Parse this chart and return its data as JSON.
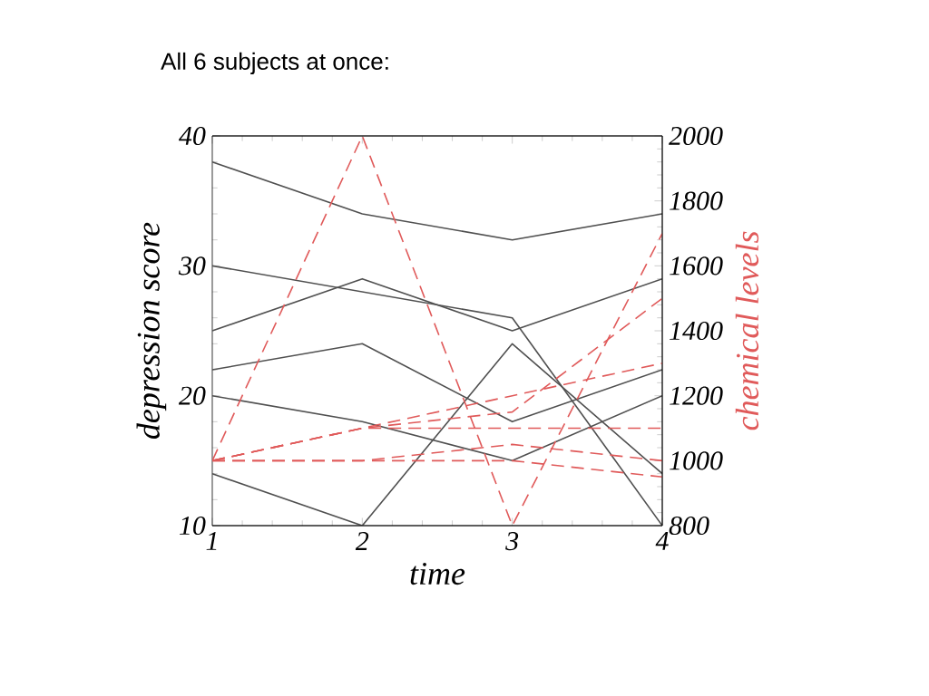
{
  "chart_data": {
    "type": "line",
    "title": "All 6 subjects at once:",
    "xlabel": "time",
    "ylabel": "depression score",
    "y2label": "chemical levels",
    "x": [
      1,
      2,
      3,
      4
    ],
    "xlim": [
      1,
      4
    ],
    "xticks": [
      1,
      2,
      3,
      4
    ],
    "ylim": [
      10,
      40
    ],
    "yticks": [
      10,
      20,
      30,
      40
    ],
    "y2lim": [
      800,
      2000
    ],
    "y2ticks": [
      800,
      1000,
      1200,
      1400,
      1600,
      1800,
      2000
    ],
    "grid": false,
    "marker": "none",
    "series": [
      {
        "color": "#505050",
        "line_style": "solid",
        "values": [
          38,
          34,
          32,
          34
        ]
      },
      {
        "color": "#505050",
        "line_style": "solid",
        "values": [
          30,
          28,
          26,
          10
        ]
      },
      {
        "color": "#505050",
        "line_style": "solid",
        "values": [
          25,
          29,
          25,
          29
        ]
      },
      {
        "color": "#505050",
        "line_style": "solid",
        "values": [
          22,
          24,
          18,
          22
        ]
      },
      {
        "color": "#505050",
        "line_style": "solid",
        "values": [
          20,
          18,
          15,
          20
        ]
      },
      {
        "color": "#505050",
        "line_style": "solid",
        "values": [
          14,
          10,
          24,
          14
        ]
      },
      {
        "color": "#e05a5a",
        "line_style": "dashed",
        "axis": "y2",
        "values": [
          1000,
          2000,
          800,
          1700
        ]
      },
      {
        "color": "#e05a5a",
        "line_style": "dashed",
        "axis": "y2",
        "values": [
          1000,
          1100,
          1200,
          1300
        ]
      },
      {
        "color": "#e05a5a",
        "line_style": "dashed",
        "axis": "y2",
        "values": [
          1000,
          1100,
          1150,
          1500
        ]
      },
      {
        "color": "#e05a5a",
        "line_style": "dashed",
        "axis": "y2",
        "values": [
          1000,
          1100,
          1100,
          1100
        ]
      },
      {
        "color": "#e05a5a",
        "line_style": "dashed",
        "axis": "y2",
        "values": [
          1000,
          1000,
          1050,
          1000
        ]
      },
      {
        "color": "#e05a5a",
        "line_style": "dashed",
        "axis": "y2",
        "values": [
          1000,
          1000,
          1000,
          950
        ]
      }
    ]
  }
}
